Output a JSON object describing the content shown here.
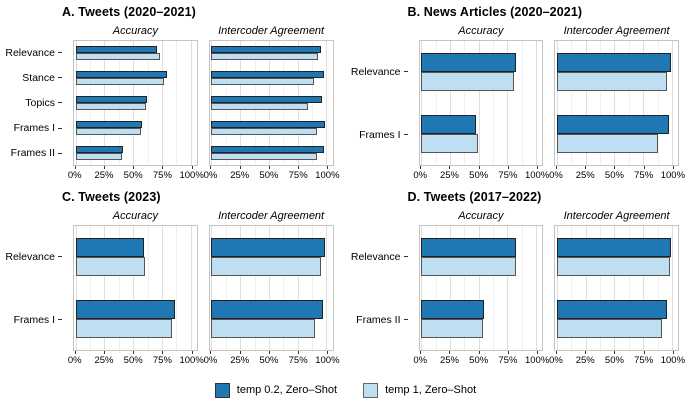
{
  "axis": {
    "x_tick_labels": [
      "0%",
      "25%",
      "50%",
      "75%",
      "100%"
    ],
    "x_major": [
      0,
      25,
      50,
      75,
      100
    ],
    "x_minor": [
      12.5,
      37.5,
      62.5,
      87.5
    ],
    "xlim": [
      0,
      100
    ]
  },
  "colors": {
    "temp02": "#1F78B4",
    "temp1": "#BEDFF1",
    "bar_outline": "#222222",
    "gridline": "#dedede",
    "panel_border": "#c4c4c4"
  },
  "legend": {
    "items": [
      {
        "label": "temp 0.2, Zero–Shot",
        "color": "#1F78B4",
        "border": "#333333"
      },
      {
        "label": "temp 1, Zero–Shot",
        "color": "#BEDFF1",
        "border": "#666666"
      }
    ]
  },
  "chart_data": [
    {
      "type": "bar",
      "panel_id": "A",
      "title": "A. Tweets (2020–2021)",
      "categories": [
        "Relevance",
        "Stance",
        "Topics",
        "Frames I",
        "Frames II"
      ],
      "xlim": [
        0,
        100
      ],
      "facets": [
        {
          "title": "Accuracy",
          "series": [
            {
              "name": "temp 0.2, Zero–Shot",
              "values": [
                71,
                79,
                62,
                58,
                41
              ]
            },
            {
              "name": "temp 1, Zero–Shot",
              "values": [
                73,
                77,
                61,
                57,
                40
              ]
            }
          ]
        },
        {
          "title": "Intercoder Agreement",
          "series": [
            {
              "name": "temp 0.2, Zero–Shot",
              "values": [
                95,
                98,
                96,
                99,
                98
              ]
            },
            {
              "name": "temp 1, Zero–Shot",
              "values": [
                93,
                89,
                84,
                92,
                92
              ]
            }
          ]
        }
      ]
    },
    {
      "type": "bar",
      "panel_id": "B",
      "title": "B. News Articles (2020–2021)",
      "categories": [
        "Relevance",
        "Frames I"
      ],
      "xlim": [
        0,
        100
      ],
      "facets": [
        {
          "title": "Accuracy",
          "series": [
            {
              "name": "temp 0.2, Zero–Shot",
              "values": [
                82,
                48
              ]
            },
            {
              "name": "temp 1, Zero–Shot",
              "values": [
                81,
                49
              ]
            }
          ]
        },
        {
          "title": "Intercoder Agreement",
          "series": [
            {
              "name": "temp 0.2, Zero–Shot",
              "values": [
                99,
                97
              ]
            },
            {
              "name": "temp 1, Zero–Shot",
              "values": [
                96,
                88
              ]
            }
          ]
        }
      ]
    },
    {
      "type": "bar",
      "panel_id": "C",
      "title": "C. Tweets (2023)",
      "categories": [
        "Relevance",
        "Frames I"
      ],
      "xlim": [
        0,
        100
      ],
      "facets": [
        {
          "title": "Accuracy",
          "series": [
            {
              "name": "temp 0.2, Zero–Shot",
              "values": [
                59,
                86
              ]
            },
            {
              "name": "temp 1, Zero–Shot",
              "values": [
                60,
                84
              ]
            }
          ]
        },
        {
          "title": "Intercoder Agreement",
          "series": [
            {
              "name": "temp 0.2, Zero–Shot",
              "values": [
                99,
                97
              ]
            },
            {
              "name": "temp 1, Zero–Shot",
              "values": [
                95,
                90
              ]
            }
          ]
        }
      ]
    },
    {
      "type": "bar",
      "panel_id": "D",
      "title": "D. Tweets (2017–2022)",
      "categories": [
        "Relevance",
        "Frames II"
      ],
      "xlim": [
        0,
        100
      ],
      "facets": [
        {
          "title": "Accuracy",
          "series": [
            {
              "name": "temp 0.2, Zero–Shot",
              "values": [
                82,
                55
              ]
            },
            {
              "name": "temp 1, Zero–Shot",
              "values": [
                82,
                54
              ]
            }
          ]
        },
        {
          "title": "Intercoder Agreement",
          "series": [
            {
              "name": "temp 0.2, Zero–Shot",
              "values": [
                99,
                96
              ]
            },
            {
              "name": "temp 1, Zero–Shot",
              "values": [
                98,
                91
              ]
            }
          ]
        }
      ]
    }
  ]
}
